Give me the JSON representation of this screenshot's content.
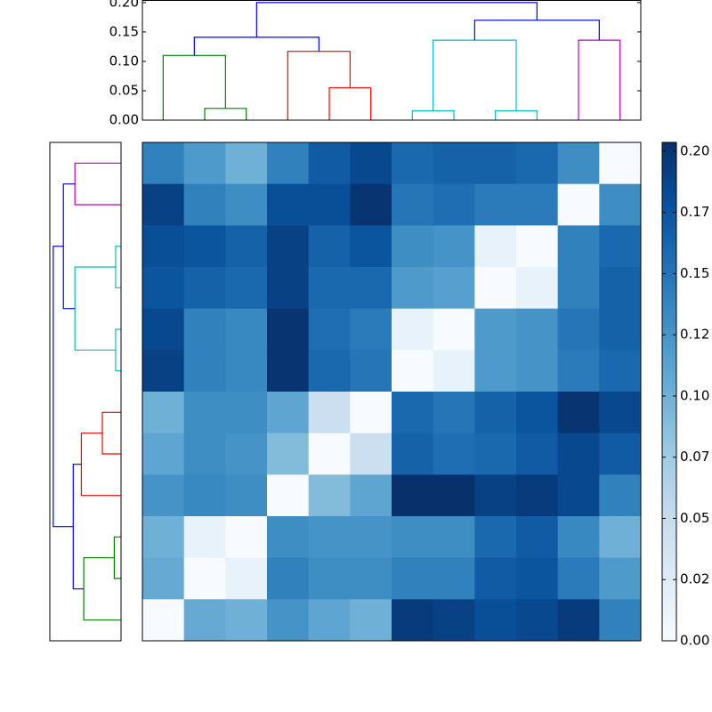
{
  "chart_data": [
    {
      "type": "dendrogram",
      "orientation": "top",
      "xlim": [
        0,
        120
      ],
      "ylim": [
        0,
        0.2036
      ],
      "yticks": [
        {
          "value": 0,
          "label": "0.00"
        },
        {
          "value": 0.05,
          "label": "0.05"
        },
        {
          "value": 0.1,
          "label": "0.10"
        },
        {
          "value": 0.15,
          "label": "0.15"
        },
        {
          "value": 0.2,
          "label": "0.20"
        }
      ],
      "links": [
        {
          "x": [
            15,
            15,
            25,
            25
          ],
          "y": [
            0,
            0.02,
            0.02,
            0
          ],
          "color": "#008000"
        },
        {
          "x": [
            5,
            5,
            20,
            20
          ],
          "y": [
            0,
            0.11,
            0.11,
            0.02
          ],
          "color": "#008000"
        },
        {
          "x": [
            45,
            45,
            55,
            55
          ],
          "y": [
            0,
            0.055,
            0.055,
            0
          ],
          "color": "#ff0000"
        },
        {
          "x": [
            35,
            35,
            50,
            50
          ],
          "y": [
            0,
            0.117,
            0.117,
            0.055
          ],
          "color": "#ff0000"
        },
        {
          "x": [
            12.5,
            12.5,
            42.5,
            42.5
          ],
          "y": [
            0.11,
            0.141,
            0.141,
            0.117
          ],
          "color": "#0000ff"
        },
        {
          "x": [
            65,
            65,
            75,
            75
          ],
          "y": [
            0,
            0.016,
            0.016,
            0
          ],
          "color": "#00bfbf"
        },
        {
          "x": [
            85,
            85,
            95,
            95
          ],
          "y": [
            0,
            0.016,
            0.016,
            0
          ],
          "color": "#00bfbf"
        },
        {
          "x": [
            70,
            70,
            90,
            90
          ],
          "y": [
            0.016,
            0.136,
            0.136,
            0.016
          ],
          "color": "#00bfbf"
        },
        {
          "x": [
            105,
            105,
            115,
            115
          ],
          "y": [
            0,
            0.136,
            0.136,
            0
          ],
          "color": "#bf00bf"
        },
        {
          "x": [
            80,
            80,
            110,
            110
          ],
          "y": [
            0.136,
            0.17,
            0.17,
            0.136
          ],
          "color": "#0000ff"
        },
        {
          "x": [
            27.5,
            27.5,
            95,
            95
          ],
          "y": [
            0.141,
            0.2,
            0.2,
            0.17
          ],
          "color": "#0000ff"
        }
      ]
    },
    {
      "type": "heatmap",
      "cmap": "Blues",
      "vlim": [
        0,
        0.2036
      ],
      "cticks": [
        {
          "value": 0,
          "label": "0.00"
        },
        {
          "value": 0.025,
          "label": "0.02"
        },
        {
          "value": 0.05,
          "label": "0.05"
        },
        {
          "value": 0.075,
          "label": "0.07"
        },
        {
          "value": 0.1,
          "label": "0.10"
        },
        {
          "value": 0.125,
          "label": "0.12"
        },
        {
          "value": 0.15,
          "label": "0.15"
        },
        {
          "value": 0.175,
          "label": "0.17"
        },
        {
          "value": 0.2,
          "label": "0.20"
        }
      ],
      "values": [
        [
          0.14,
          0.12,
          0.1,
          0.14,
          0.17,
          0.185,
          0.16,
          0.165,
          0.165,
          0.16,
          0.13,
          0.0
        ],
        [
          0.19,
          0.14,
          0.13,
          0.18,
          0.18,
          0.2,
          0.15,
          0.155,
          0.145,
          0.145,
          0.0,
          0.13
        ],
        [
          0.18,
          0.175,
          0.165,
          0.19,
          0.165,
          0.175,
          0.13,
          0.125,
          0.015,
          0.0,
          0.14,
          0.16
        ],
        [
          0.175,
          0.165,
          0.16,
          0.19,
          0.16,
          0.16,
          0.12,
          0.115,
          0.0,
          0.015,
          0.14,
          0.165
        ],
        [
          0.185,
          0.14,
          0.135,
          0.2,
          0.155,
          0.145,
          0.015,
          0.0,
          0.12,
          0.125,
          0.15,
          0.165
        ],
        [
          0.19,
          0.14,
          0.135,
          0.2,
          0.16,
          0.15,
          0.0,
          0.015,
          0.12,
          0.125,
          0.145,
          0.16
        ],
        [
          0.1,
          0.13,
          0.13,
          0.11,
          0.045,
          0.0,
          0.16,
          0.15,
          0.165,
          0.175,
          0.2,
          0.185
        ],
        [
          0.11,
          0.13,
          0.125,
          0.09,
          0.0,
          0.045,
          0.165,
          0.155,
          0.16,
          0.17,
          0.185,
          0.17
        ],
        [
          0.125,
          0.135,
          0.13,
          0.0,
          0.09,
          0.11,
          0.203,
          0.203,
          0.19,
          0.195,
          0.185,
          0.14
        ],
        [
          0.1,
          0.015,
          0.0,
          0.13,
          0.125,
          0.125,
          0.13,
          0.13,
          0.16,
          0.17,
          0.135,
          0.1
        ],
        [
          0.105,
          0.0,
          0.015,
          0.14,
          0.13,
          0.13,
          0.14,
          0.14,
          0.17,
          0.175,
          0.145,
          0.12
        ],
        [
          0.0,
          0.105,
          0.1,
          0.125,
          0.11,
          0.1,
          0.195,
          0.19,
          0.18,
          0.185,
          0.195,
          0.14
        ]
      ]
    },
    {
      "type": "dendrogram",
      "orientation": "left",
      "xlim": [
        0.21,
        0
      ],
      "ylim": [
        0,
        120
      ],
      "links": [
        {
          "y": [
            15,
            15,
            25,
            25
          ],
          "x": [
            0,
            0.02,
            0.02,
            0
          ],
          "color": "#008000"
        },
        {
          "y": [
            5,
            5,
            20,
            20
          ],
          "x": [
            0,
            0.11,
            0.11,
            0.02
          ],
          "color": "#008000"
        },
        {
          "y": [
            45,
            45,
            55,
            55
          ],
          "x": [
            0,
            0.055,
            0.055,
            0
          ],
          "color": "#ff0000"
        },
        {
          "y": [
            35,
            35,
            50,
            50
          ],
          "x": [
            0,
            0.117,
            0.117,
            0.055
          ],
          "color": "#ff0000"
        },
        {
          "y": [
            12.5,
            12.5,
            42.5,
            42.5
          ],
          "x": [
            0.11,
            0.141,
            0.141,
            0.117
          ],
          "color": "#0000ff"
        },
        {
          "y": [
            65,
            65,
            75,
            75
          ],
          "x": [
            0,
            0.016,
            0.016,
            0
          ],
          "color": "#00bfbf"
        },
        {
          "y": [
            85,
            85,
            95,
            95
          ],
          "x": [
            0,
            0.016,
            0.016,
            0
          ],
          "color": "#00bfbf"
        },
        {
          "y": [
            70,
            70,
            90,
            90
          ],
          "x": [
            0.016,
            0.136,
            0.136,
            0.016
          ],
          "color": "#00bfbf"
        },
        {
          "y": [
            105,
            105,
            115,
            115
          ],
          "x": [
            0,
            0.136,
            0.136,
            0
          ],
          "color": "#bf00bf"
        },
        {
          "y": [
            80,
            80,
            110,
            110
          ],
          "x": [
            0.136,
            0.17,
            0.17,
            0.136
          ],
          "color": "#0000ff"
        },
        {
          "y": [
            27.5,
            27.5,
            95,
            95
          ],
          "x": [
            0.141,
            0.2,
            0.2,
            0.17
          ],
          "color": "#0000ff"
        }
      ]
    }
  ]
}
